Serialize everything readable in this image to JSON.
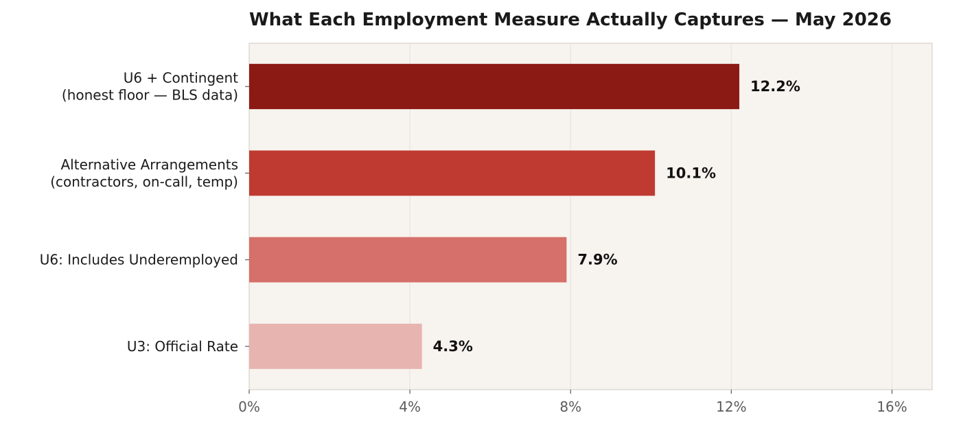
{
  "chart_data": {
    "type": "bar",
    "orientation": "horizontal",
    "title": "What Each Employment Measure Actually Captures — May 2026",
    "xlabel": "",
    "ylabel": "",
    "xlim": [
      0,
      17
    ],
    "grid": "vertical",
    "categories": [
      [
        "U6 + Contingent",
        "(honest floor — BLS data)"
      ],
      [
        "Alternative Arrangements",
        "(contractors, on-call, temp)"
      ],
      [
        "U6: Includes Underemployed"
      ],
      [
        "U3: Official Rate"
      ]
    ],
    "values": [
      12.2,
      10.1,
      7.9,
      4.3
    ],
    "value_labels": [
      "12.2%",
      "10.1%",
      "7.9%",
      "4.3%"
    ],
    "bar_colors": [
      "#8b1a15",
      "#bf3a30",
      "#d5706a",
      "#e8b4b0"
    ],
    "x_ticks": [
      0,
      4,
      8,
      12,
      16
    ],
    "x_tick_labels": [
      "0%",
      "4%",
      "8%",
      "12%",
      "16%"
    ],
    "plot_background": "#f7f3ee",
    "grid_color": "#e0dbd4"
  }
}
